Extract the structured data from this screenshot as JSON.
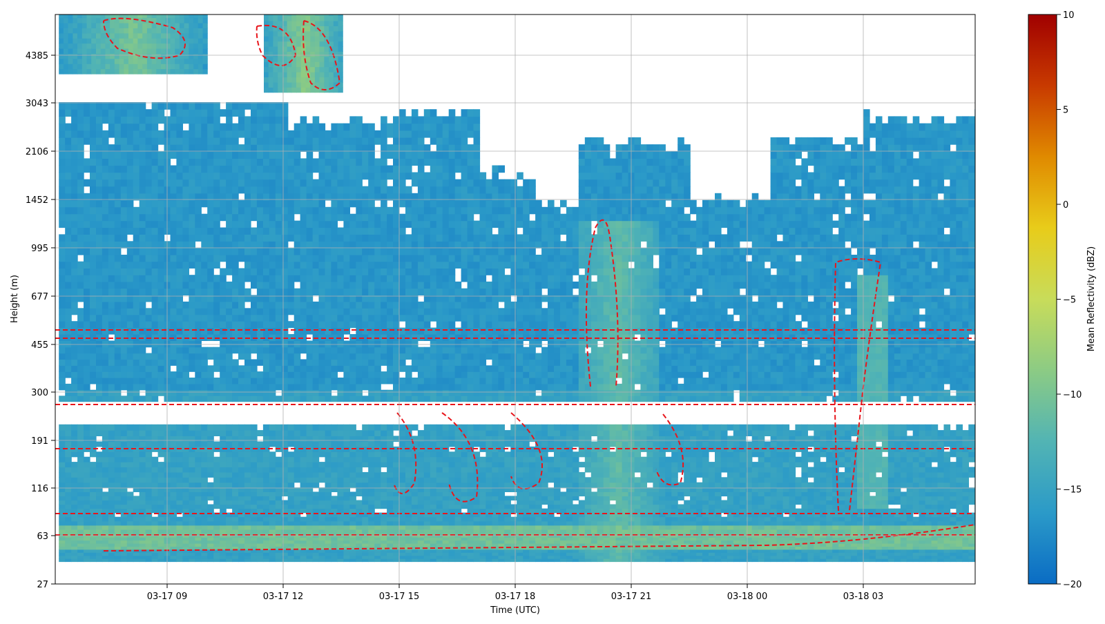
{
  "chart_data": {
    "type": "heatmap",
    "title": "",
    "xlabel": "Time (UTC)",
    "ylabel": "Height (m)",
    "x_ticks": [
      "03-17 09",
      "03-17 12",
      "03-17 15",
      "03-17 18",
      "03-17 21",
      "03-18 00",
      "03-18 03"
    ],
    "x_range_hours": [
      6.2,
      30.0
    ],
    "y_ticks": [
      "27",
      "63",
      "116",
      "191",
      "300",
      "455",
      "677",
      "995",
      "1452",
      "2106",
      "3043",
      "4385"
    ],
    "y_tick_values": [
      27,
      63,
      116,
      191,
      300,
      455,
      677,
      995,
      1452,
      2106,
      3043,
      4385
    ],
    "grid": true,
    "colorbar": {
      "label": "Mean Reflectivity (dBZ)",
      "min": -20,
      "max": 10,
      "ticks": [
        "10",
        "5",
        "0",
        "−5",
        "−10",
        "−15",
        "−20"
      ],
      "tick_values": [
        10,
        5,
        0,
        -5,
        -10,
        -15,
        -20
      ],
      "colors": [
        "#0a6cc4",
        "#2b9ac8",
        "#52b4b4",
        "#8ccb84",
        "#c8dc5a",
        "#e8cc1a",
        "#e08a00",
        "#c83a00",
        "#a00000"
      ]
    },
    "contour": {
      "color": "#e8151b",
      "style": "dashed"
    },
    "background_level_dbz": -16.5,
    "features": [
      {
        "name": "low-level-enhanced-layer",
        "height_m": [
          50,
          70
        ],
        "value_dbz": -10
      },
      {
        "name": "convective-column",
        "time": "03-17 20:30",
        "height_m": [
          40,
          1200
        ],
        "value_dbz": -11
      },
      {
        "name": "upper-echo-1",
        "time": "03-17 08:00",
        "height_m": [
          3800,
          5000
        ],
        "value_dbz": -10
      },
      {
        "name": "upper-echo-2",
        "time": "03-17 12:30",
        "height_m": [
          3300,
          5000
        ],
        "value_dbz": -9
      },
      {
        "name": "no-data-gap",
        "height_m": [
          230,
          262
        ],
        "value_dbz": null
      }
    ]
  }
}
